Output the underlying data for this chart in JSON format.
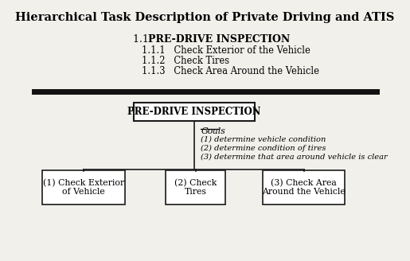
{
  "title": "Hierarchical Task Description of Private Driving and ATIS",
  "section_header_num": "1.1  ",
  "section_header_bold": "PRE-DRIVE INSPECTION",
  "sub_items": [
    "1.1.1   Check Exterior of the Vehicle",
    "1.1.2   Check Tires",
    "1.1.3   Check Area Around the Vehicle"
  ],
  "box_top_label": "PRE-DRIVE INSPECTION",
  "goals_label": "Goals",
  "goals": [
    "(1) determine vehicle condition",
    "(2) determine condition of tires",
    "(3) determine that area around vehicle is clear"
  ],
  "child_boxes": [
    "(1) Check Exterior\nof Vehicle",
    "(2) Check\nTires",
    "(3) Check Area\nAround the Vehicle"
  ],
  "bg_color": "#f2f0eb",
  "text_color": "#000000",
  "box_edge_color": "#1a1a1a",
  "divider_color": "#111111"
}
